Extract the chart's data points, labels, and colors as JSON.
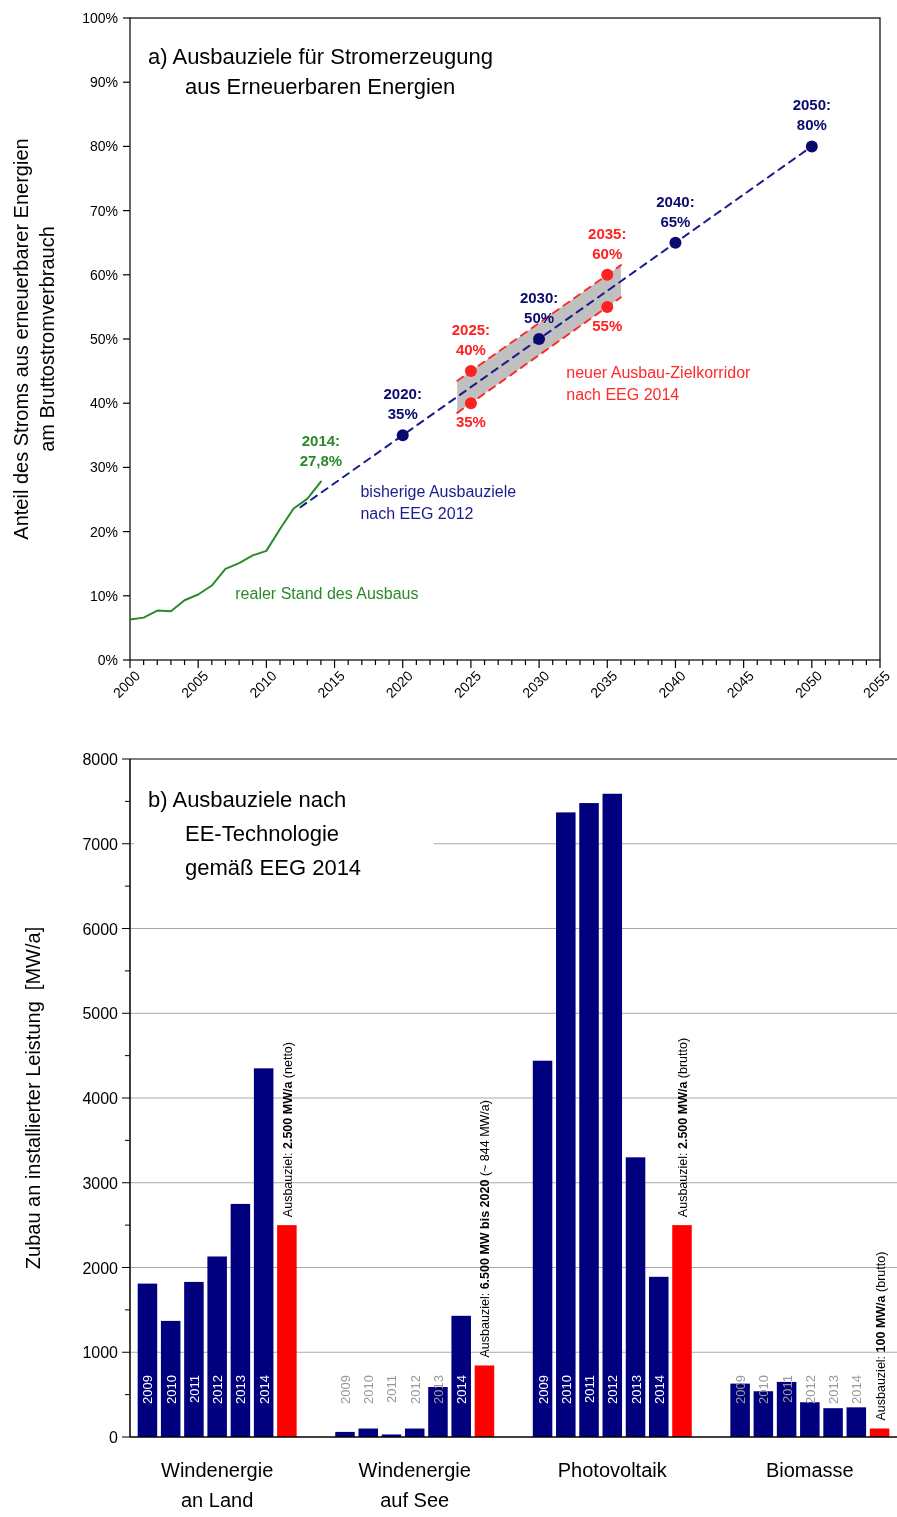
{
  "chart_data": [
    {
      "type": "line",
      "title": "a) Ausbauziele für Stromerzeugung\naus Erneuerbaren Energien",
      "ylabel": "Anteil des Stroms aus erneuerbarer Energien\nam Bruttostromverbrauch",
      "xlim": [
        2000,
        2055
      ],
      "ylim": [
        0,
        100
      ],
      "xticks": [
        2000,
        {
          "value": 2001,
          "label": null
        },
        {
          "value": 2002,
          "label": null
        },
        {
          "value": 2003,
          "label": null
        },
        {
          "value": 2004,
          "label": null
        },
        2005,
        {
          "value": 2006,
          "label": null
        },
        {
          "value": 2007,
          "label": null
        },
        {
          "value": 2008,
          "label": null
        },
        {
          "value": 2009,
          "label": null
        },
        2010,
        {
          "value": 2011,
          "label": null
        },
        {
          "value": 2012,
          "label": null
        },
        {
          "value": 2013,
          "label": null
        },
        {
          "value": 2014,
          "label": null
        },
        2015,
        {
          "value": 2016,
          "label": null
        },
        {
          "value": 2017,
          "label": null
        },
        {
          "value": 2018,
          "label": null
        },
        {
          "value": 2019,
          "label": null
        },
        2020,
        {
          "value": 2021,
          "label": null
        },
        {
          "value": 2022,
          "label": null
        },
        {
          "value": 2023,
          "label": null
        },
        {
          "value": 2024,
          "label": null
        },
        2025,
        {
          "value": 2026,
          "label": null
        },
        {
          "value": 2027,
          "label": null
        },
        {
          "value": 2028,
          "label": null
        },
        {
          "value": 2029,
          "label": null
        },
        2030,
        {
          "value": 2031,
          "label": null
        },
        {
          "value": 2032,
          "label": null
        },
        {
          "value": 2033,
          "label": null
        },
        {
          "value": 2034,
          "label": null
        },
        2035,
        {
          "value": 2036,
          "label": null
        },
        {
          "value": 2037,
          "label": null
        },
        {
          "value": 2038,
          "label": null
        },
        {
          "value": 2039,
          "label": null
        },
        2040,
        {
          "value": 2041,
          "label": null
        },
        {
          "value": 2042,
          "label": null
        },
        {
          "value": 2043,
          "label": null
        },
        {
          "value": 2044,
          "label": null
        },
        2045,
        {
          "value": 2046,
          "label": null
        },
        {
          "value": 2047,
          "label": null
        },
        {
          "value": 2048,
          "label": null
        },
        {
          "value": 2049,
          "label": null
        },
        2050,
        {
          "value": 2051,
          "label": null
        },
        {
          "value": 2052,
          "label": null
        },
        {
          "value": 2053,
          "label": null
        },
        {
          "value": 2054,
          "label": null
        },
        2055
      ],
      "yticks": [
        {
          "value": 0,
          "label": "0%"
        },
        {
          "value": 10,
          "label": "10%"
        },
        {
          "value": 20,
          "label": "20%"
        },
        {
          "value": 30,
          "label": "30%"
        },
        {
          "value": 40,
          "label": "40%"
        },
        {
          "value": 50,
          "label": "50%"
        },
        {
          "value": 60,
          "label": "60%"
        },
        {
          "value": 70,
          "label": "70%"
        },
        {
          "value": 80,
          "label": "80%"
        },
        {
          "value": 90,
          "label": "90%"
        },
        {
          "value": 100,
          "label": "100%"
        }
      ],
      "series": [
        {
          "type": "line",
          "name": "realer Stand des Ausbaus",
          "color": "#2a8a2a",
          "line_style": "solid",
          "marker": "none",
          "x": [
            2000,
            2001,
            2002,
            2003,
            2004,
            2005,
            2006,
            2007,
            2008,
            2009,
            2010,
            2011,
            2012,
            2013,
            2014
          ],
          "values": [
            6.3,
            6.6,
            7.7,
            7.6,
            9.3,
            10.2,
            11.6,
            14.2,
            15.1,
            16.3,
            17.0,
            20.4,
            23.6,
            25.1,
            27.8
          ]
        },
        {
          "type": "line",
          "name": "neuer Ausbau-Zielkorridor\nnach EEG 2014",
          "color": "#ff2a2a",
          "line_style": "dashed",
          "marker": "none",
          "x": [
            2024,
            2036
          ],
          "values": [
            43.5,
            61.5
          ]
        },
        {
          "type": "line",
          "color": "#ff2a2a",
          "line_style": "dashed",
          "marker": "none",
          "x": [
            2024,
            2036
          ],
          "values": [
            38.5,
            56.5
          ]
        },
        {
          "type": "line",
          "name": "bisherige Ausbauziele\nnach EEG 2012",
          "color": "#1c1c8c",
          "line_style": "dashed",
          "marker": "none",
          "x": [
            2012.5,
            2024,
            2036,
            2050
          ],
          "values": [
            23.8,
            41,
            59,
            80
          ],
          "lower": [
            null,
            38.5,
            56.5,
            null
          ],
          "upper": [
            null,
            43.5,
            61.5,
            null
          ]
        },
        {
          "type": "scatter",
          "color": "#0a0a6e",
          "marker": "circle",
          "x": [
            2020,
            2030,
            2040,
            2050
          ],
          "values": [
            35,
            50,
            65,
            80
          ]
        },
        {
          "type": "scatter",
          "color": "#ff2020",
          "marker": "circle",
          "x": [
            2025,
            2025,
            2035,
            2035
          ],
          "values": [
            40,
            45,
            55,
            60
          ]
        }
      ],
      "annotations": [
        {
          "text": "2014:\n27,8%",
          "x": 2014,
          "y": 27.8
        },
        {
          "text": "2020:\n35%",
          "x": 2020,
          "y": 35
        },
        {
          "text": "2025:\n40%",
          "x": 2025,
          "y": 45
        },
        {
          "text": "35%",
          "x": 2025,
          "y": 40
        },
        {
          "text": "2030:\n50%",
          "x": 2030,
          "y": 50
        },
        {
          "text": "2035:\n60%",
          "x": 2035,
          "y": 60
        },
        {
          "text": "55%",
          "x": 2035,
          "y": 55
        },
        {
          "text": "2040:\n65%",
          "x": 2040,
          "y": 65
        },
        {
          "text": "2050:\n80%",
          "x": 2050,
          "y": 80
        }
      ]
    },
    {
      "type": "bar",
      "title": "b) Ausbauziele nach\nEE-Technologie\ngemäß EEG 2014",
      "ylabel": "Zubau an installierter Leistung  [MW/a]",
      "categories": [
        "Windenergie\nan Land",
        "Windenergie\nauf See",
        "Photovoltaik",
        "Biomasse"
      ],
      "series": [
        {
          "name": "2009",
          "color": "#00007f",
          "values": [
            1810,
            60,
            4440,
            630
          ]
        },
        {
          "name": "2010",
          "color": "#00007f",
          "values": [
            1370,
            100,
            7370,
            540
          ]
        },
        {
          "name": "2011",
          "color": "#00007f",
          "values": [
            1830,
            30,
            7480,
            650
          ]
        },
        {
          "name": "2012",
          "color": "#00007f",
          "values": [
            2130,
            100,
            7590,
            410
          ]
        },
        {
          "name": "2013",
          "color": "#00007f",
          "values": [
            2750,
            590,
            3300,
            340
          ]
        },
        {
          "name": "2014",
          "color": "#00007f",
          "values": [
            4350,
            1430,
            1890,
            350
          ]
        },
        {
          "color": "#ff0000",
          "values": [
            2500,
            844,
            2500,
            100
          ],
          "value_labels": [
            "Ausbauziel: 2.500 MW/a (netto)",
            "Ausbauziel: 6.500 MW bis 2020 (~ 844 MW/a)",
            "Ausbauziel: 2.500 MW/a (brutto)",
            "Ausbauziel: 100 MW/a (brutto)"
          ]
        }
      ],
      "ylim": [
        0,
        8000
      ],
      "yticks": [
        0,
        {
          "value": 500,
          "label": null
        },
        1000,
        {
          "value": 1500,
          "label": null
        },
        2000,
        {
          "value": 2500,
          "label": null
        },
        3000,
        {
          "value": 3500,
          "label": null
        },
        4000,
        {
          "value": 4500,
          "label": null
        },
        5000,
        {
          "value": 5500,
          "label": null
        },
        6000,
        {
          "value": 6500,
          "label": null
        },
        7000,
        {
          "value": 7500,
          "label": null
        },
        8000
      ],
      "grid": "y"
    }
  ]
}
